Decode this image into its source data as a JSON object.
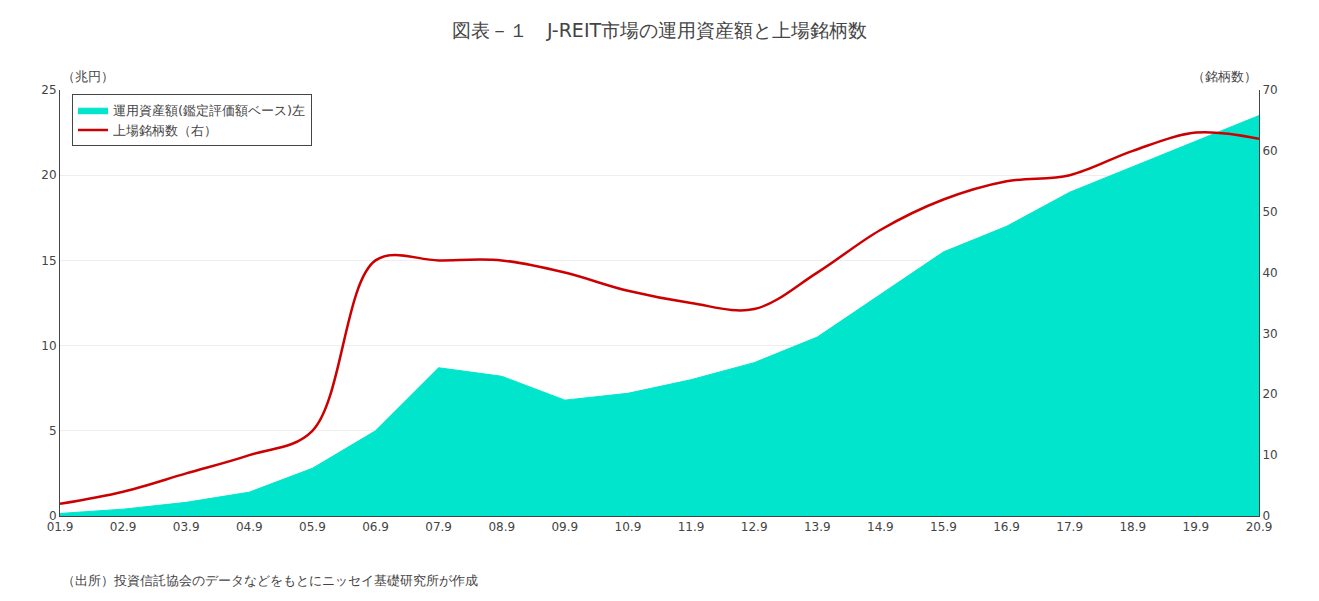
{
  "chart_data": {
    "type": "area_line",
    "title": "図表－１　J-REIT市場の運用資産額と上場銘柄数",
    "ylabel": "（兆円）",
    "y2label": "（銘柄数）",
    "annotations": [
      "（出所）投資信託協会のデータなどをもとにニッセイ基礎研究所が作成"
    ],
    "categories": [
      "01.9",
      "02.9",
      "03.9",
      "04.9",
      "05.9",
      "06.9",
      "07.9",
      "08.9",
      "09.9",
      "10.9",
      "11.9",
      "12.9",
      "13.9",
      "14.9",
      "15.9",
      "16.9",
      "17.9",
      "18.9",
      "19.9",
      "20.9"
    ],
    "series": [
      {
        "name": "運用資産額(鑑定評価額ベース)左",
        "type": "area",
        "color": "#00E5CC",
        "values": [
          0.15,
          0.4,
          0.8,
          1.4,
          2.8,
          5.0,
          8.7,
          8.2,
          6.8,
          7.2,
          8.0,
          9.0,
          10.5,
          13.0,
          15.5,
          17.0,
          19.0,
          20.5,
          22.0,
          23.5
        ]
      },
      {
        "name": "上場銘柄数（右）",
        "type": "line",
        "color": "#CC0000",
        "axis": "y2",
        "values": [
          2,
          4,
          7,
          10,
          14,
          42,
          42,
          42,
          40,
          37,
          35,
          34,
          40,
          47,
          52,
          55,
          56,
          60,
          63,
          62
        ]
      }
    ],
    "ylim": [
      0,
      25
    ],
    "yticks": [
      0,
      5,
      10,
      15,
      20,
      25
    ],
    "y2lim": [
      0,
      70
    ],
    "y2ticks": [
      0,
      10,
      20,
      30,
      40,
      50,
      60,
      70
    ],
    "grid": true,
    "legend": "upper left"
  }
}
